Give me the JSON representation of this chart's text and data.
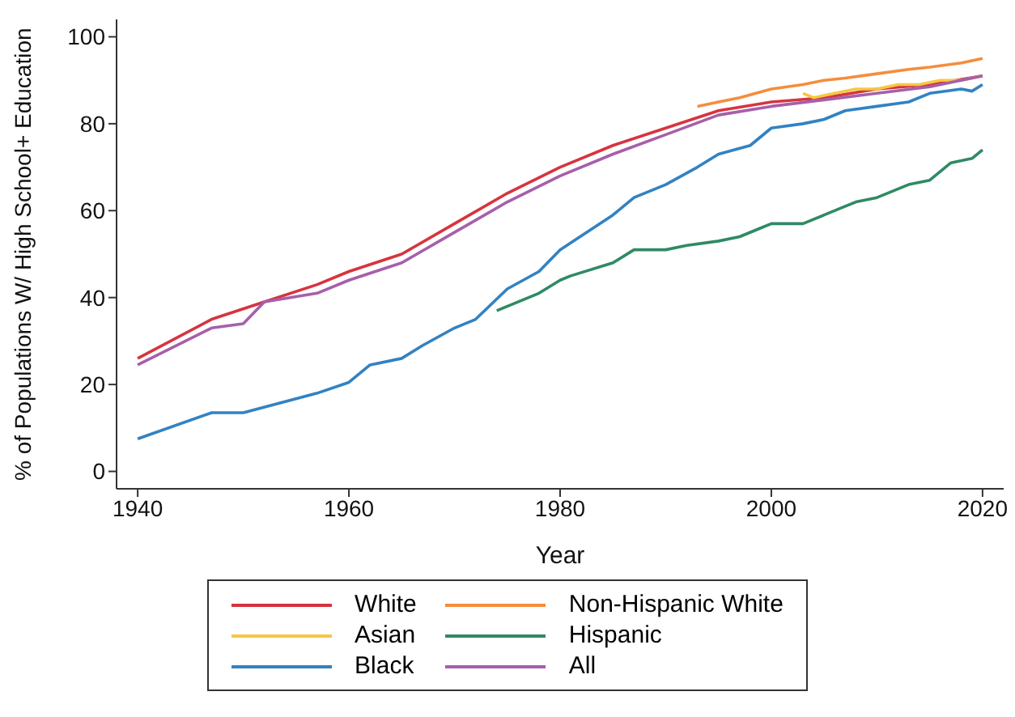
{
  "chart_data": {
    "type": "line",
    "xlabel": "Year",
    "ylabel": "% of Populations W/ High School+ Education",
    "xlim": [
      1938,
      2022
    ],
    "xticks": [
      1940,
      1960,
      1980,
      2000,
      2020
    ],
    "ylim": [
      -4,
      104
    ],
    "yticks": [
      0,
      20,
      40,
      60,
      80,
      100
    ],
    "grid": false,
    "legend": "bottom",
    "line_style": "solid",
    "marker": "none",
    "series": [
      {
        "name": "White",
        "color": "#d6343f",
        "x": [
          1940,
          1947,
          1952,
          1957,
          1960,
          1965,
          1970,
          1975,
          1980,
          1985,
          1990,
          1995,
          2000,
          2005,
          2010,
          2015,
          2020
        ],
        "values": [
          26,
          35,
          39,
          43,
          46,
          50,
          57,
          64,
          70,
          75,
          79,
          83,
          85,
          86,
          88,
          89,
          91
        ]
      },
      {
        "name": "Asian",
        "color": "#f5c842",
        "x": [
          2003,
          2004,
          2006,
          2008,
          2010,
          2012,
          2014,
          2016,
          2018,
          2020
        ],
        "values": [
          87,
          86,
          87,
          88,
          88,
          89,
          89,
          90,
          90,
          91
        ]
      },
      {
        "name": "Black",
        "color": "#3282c2",
        "x": [
          1940,
          1947,
          1950,
          1957,
          1960,
          1962,
          1965,
          1967,
          1970,
          1972,
          1975,
          1978,
          1980,
          1985,
          1987,
          1990,
          1993,
          1995,
          1998,
          2000,
          2003,
          2005,
          2007,
          2010,
          2013,
          2015,
          2018,
          2019,
          2020
        ],
        "values": [
          7.5,
          13.5,
          13.5,
          18,
          20.5,
          24.5,
          26,
          29,
          33,
          35,
          42,
          46,
          51,
          59,
          63,
          66,
          70,
          73,
          75,
          79,
          80,
          81,
          83,
          84,
          85,
          87,
          88,
          87.5,
          89
        ]
      },
      {
        "name": "Non-Hispanic White",
        "color": "#f58d3d",
        "x": [
          1993,
          1995,
          1997,
          2000,
          2003,
          2005,
          2007,
          2010,
          2013,
          2015,
          2018,
          2020
        ],
        "values": [
          84,
          85,
          86,
          88,
          89,
          90,
          90.5,
          91.5,
          92.5,
          93,
          94,
          95
        ]
      },
      {
        "name": "Hispanic",
        "color": "#2f8a64",
        "x": [
          1974,
          1976,
          1978,
          1980,
          1981,
          1985,
          1987,
          1990,
          1992,
          1995,
          1997,
          1999,
          2000,
          2003,
          2005,
          2007,
          2008,
          2010,
          2013,
          2015,
          2017,
          2019,
          2020
        ],
        "values": [
          37,
          39,
          41,
          44,
          45,
          48,
          51,
          51,
          52,
          53,
          54,
          56,
          57,
          57,
          59,
          61,
          62,
          63,
          66,
          67,
          71,
          72,
          74
        ]
      },
      {
        "name": "All",
        "color": "#a65faa",
        "x": [
          1940,
          1947,
          1950,
          1952,
          1957,
          1960,
          1965,
          1970,
          1975,
          1980,
          1985,
          1990,
          1995,
          2000,
          2005,
          2010,
          2015,
          2020
        ],
        "values": [
          24.5,
          33,
          34,
          39,
          41,
          44,
          48,
          55,
          62,
          68,
          73,
          77.5,
          82,
          84,
          85.5,
          87,
          88.5,
          91
        ]
      }
    ]
  }
}
